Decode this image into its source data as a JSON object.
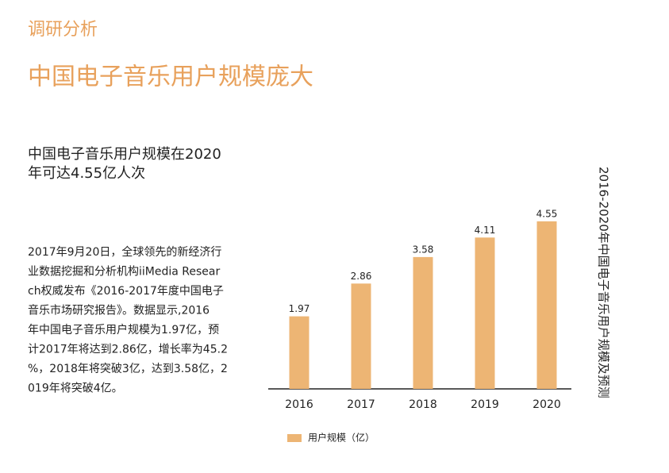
{
  "section": "调研分析",
  "heading": "中国电子音乐用户规模庞大",
  "subheading": [
    "中国电子音乐用户规模在2020",
    "年可达4.55亿人次"
  ],
  "body": [
    "2017年9月20日，全球领先的新经济行",
    "业数据挖掘和分析机构iiMedia Resear",
    "ch权威发布《2016-2017年度中国电子",
    "音乐市场研究报告》。数据显示,2016",
    "年中国电子音乐用户规模为1.97亿，预",
    "计2017年将达到2.86亿，增长率为45.2",
    "%，2018年将突破3亿，达到3.58亿，2",
    "019年将突破4亿。"
  ],
  "chart_data": {
    "type": "bar",
    "title": "2016-2020年中国电子音乐用户规模及预测",
    "categories": [
      "2016",
      "2017",
      "2018",
      "2019",
      "2020"
    ],
    "series": [
      {
        "name": "用户规模（亿）",
        "color": "#edb574",
        "values": [
          1.97,
          2.86,
          3.58,
          4.11,
          4.55
        ]
      }
    ]
  }
}
